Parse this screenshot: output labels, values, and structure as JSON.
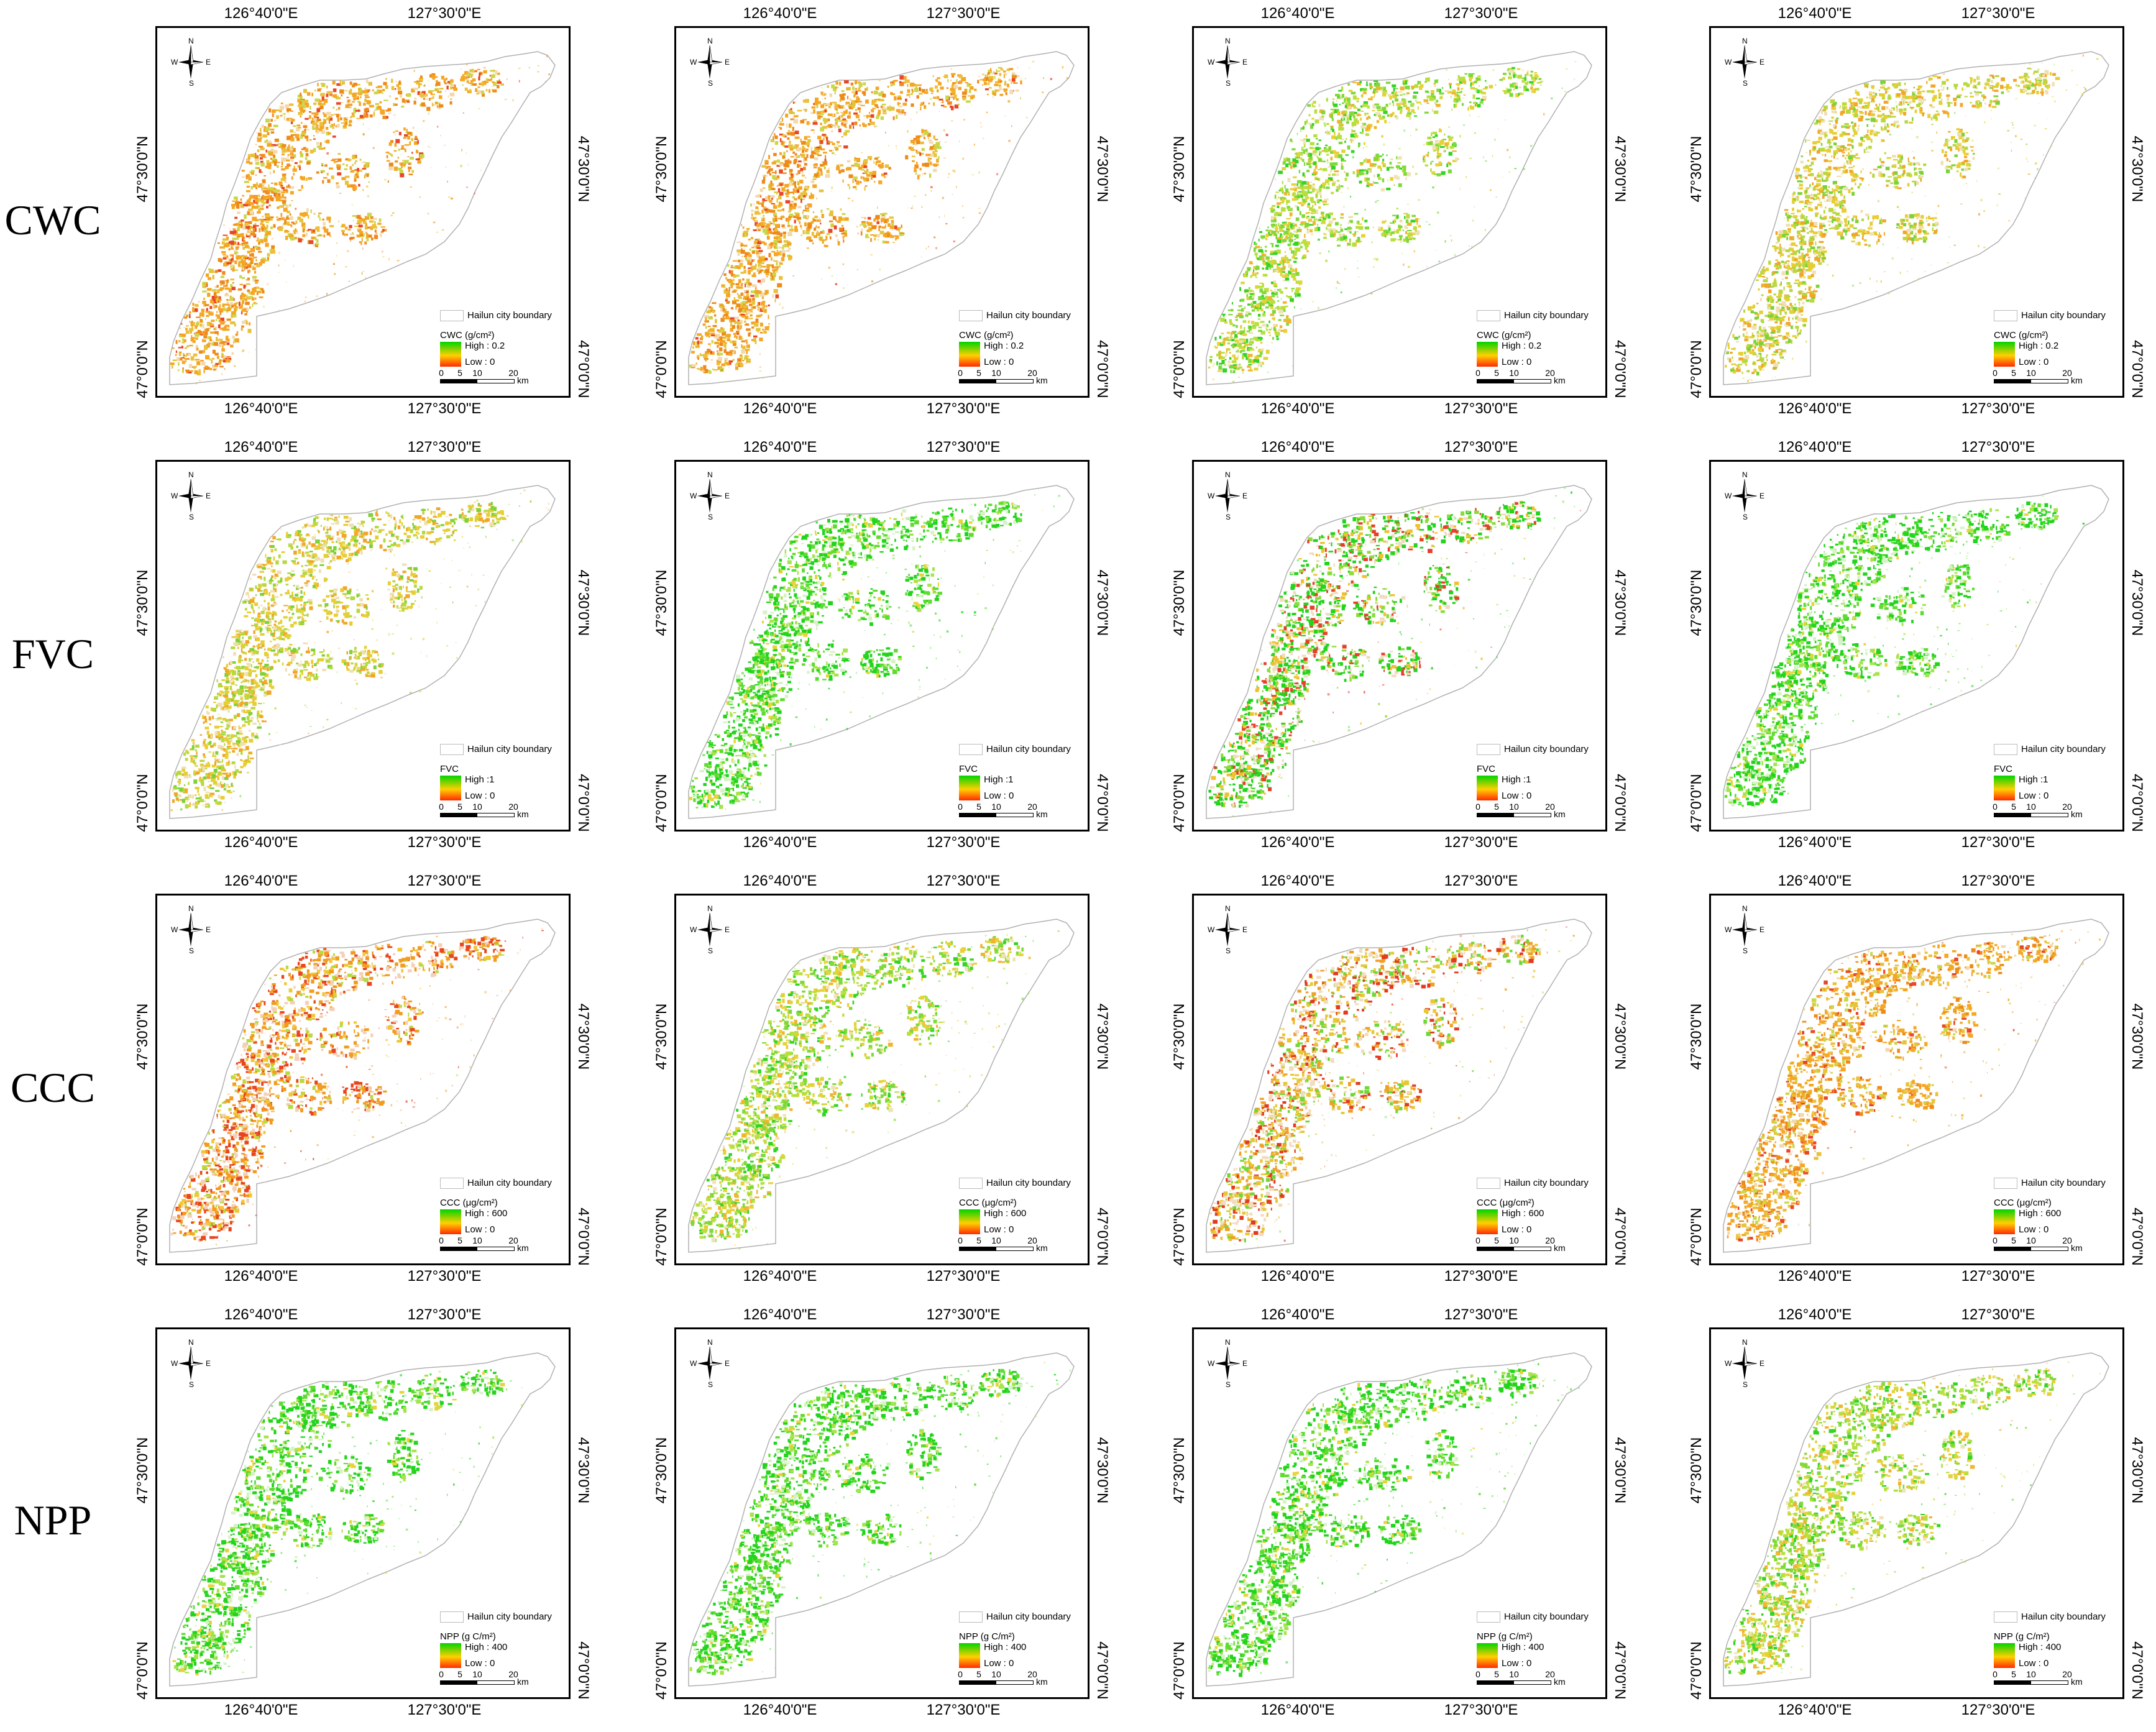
{
  "rows": [
    {
      "label": "CWC",
      "variable": "CWC (g/cm²)",
      "high": "High : 0.2",
      "low": "Low : 0"
    },
    {
      "label": "FVC",
      "variable": "FVC",
      "high": "High :1",
      "low": "Low : 0"
    },
    {
      "label": "CCC",
      "variable": "CCC (μg/cm²)",
      "high": "High : 600",
      "low": "Low : 0"
    },
    {
      "label": "NPP",
      "variable": "NPP (g C/m²)",
      "high": "High : 400",
      "low": "Low : 0"
    }
  ],
  "axis": {
    "lon_left": "126°40'0\"E",
    "lon_right": "127°30'0\"E",
    "lat_upper": "47°30'0\"N",
    "lat_lower": "47°0'0\"N"
  },
  "compass": {
    "n": "N",
    "s": "S",
    "e": "E",
    "w": "W"
  },
  "legend": {
    "boundary": "Hailun city boundary"
  },
  "scalebar": {
    "ticks": [
      "0",
      "5",
      "10",
      "20"
    ],
    "unit": "km"
  },
  "colors": {
    "high": "#00d400",
    "mid": "#ffd000",
    "low": "#ff2a00",
    "boundary": "#b0b0b0"
  },
  "panel_dominance": [
    [
      "orange",
      "orange",
      "green-yellow",
      "yellow"
    ],
    [
      "yellow",
      "green",
      "green-red",
      "green"
    ],
    [
      "orange-red",
      "green-yellow",
      "yellow-red",
      "orange"
    ],
    [
      "green",
      "green",
      "green",
      "green-yellow"
    ]
  ]
}
